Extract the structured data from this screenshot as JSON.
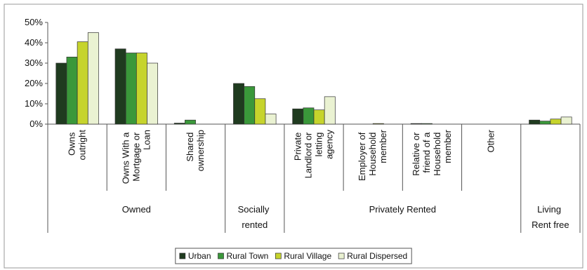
{
  "chart_data": {
    "type": "bar",
    "groups": [
      {
        "name": "Owned",
        "categories": [
          "Owns outright",
          "Owns With a Mortgage or Loan",
          "Shared ownership"
        ]
      },
      {
        "name": "Socially rented",
        "categories": [
          null
        ]
      },
      {
        "name": "Privately Rented",
        "categories": [
          "Private Landlord or letting agency",
          "Employer of Household member",
          "Relative or friend of a Household member",
          "Other"
        ]
      },
      {
        "name": "Living Rent free",
        "categories": [
          null
        ]
      }
    ],
    "series": [
      {
        "name": "Urban",
        "color": "#1f3b1f",
        "values": [
          30,
          37,
          0.5,
          20,
          7.5,
          0,
          0.3,
          0,
          2
        ]
      },
      {
        "name": "Rural Town",
        "color": "#3a983a",
        "values": [
          33,
          35,
          2,
          18.5,
          8,
          0,
          0.3,
          0,
          1.5
        ]
      },
      {
        "name": "Rural Village",
        "color": "#c6d42c",
        "values": [
          40.5,
          35,
          0,
          12.5,
          7,
          0.3,
          0,
          0,
          2.5
        ]
      },
      {
        "name": "Rural Dispersed",
        "color": "#eaf2d2",
        "values": [
          45,
          30,
          0,
          5,
          13.5,
          0,
          0,
          0,
          3.5
        ]
      }
    ],
    "ylim": [
      0,
      50
    ],
    "yticks": [
      {
        "value": 0,
        "label": "0%"
      },
      {
        "value": 10,
        "label": "10%"
      },
      {
        "value": 20,
        "label": "20%"
      },
      {
        "value": 30,
        "label": "30%"
      },
      {
        "value": 40,
        "label": "40%"
      },
      {
        "value": 50,
        "label": "50%"
      }
    ],
    "legend": "bottom"
  }
}
